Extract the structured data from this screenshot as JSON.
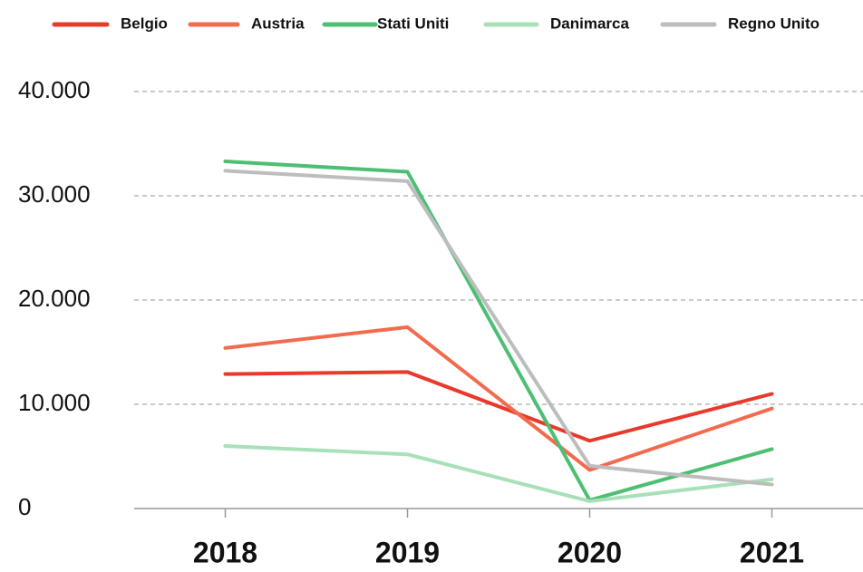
{
  "chart_data": {
    "type": "line",
    "categories": [
      "2018",
      "2019",
      "2020",
      "2021"
    ],
    "series": [
      {
        "name": "Belgio",
        "color": "#e8392b",
        "values": [
          12900,
          13100,
          6500,
          11000
        ]
      },
      {
        "name": "Austria",
        "color": "#f26b4f",
        "values": [
          15400,
          17400,
          3700,
          9600
        ]
      },
      {
        "name": "Stati Uniti",
        "color": "#4dbf73",
        "values": [
          33300,
          32300,
          800,
          5700
        ]
      },
      {
        "name": "Danimarca",
        "color": "#a8e0b8",
        "values": [
          6000,
          5200,
          700,
          2800
        ]
      },
      {
        "name": "Regno Unito",
        "color": "#bdbdbd",
        "values": [
          32400,
          31400,
          4100,
          2300
        ]
      }
    ],
    "ylim": [
      0,
      40000
    ],
    "yticks": [
      0,
      {
        "value": 10000,
        "label": "10.000"
      },
      {
        "value": 20000,
        "label": "20.000"
      },
      {
        "value": 30000,
        "label": "30.000"
      },
      {
        "value": 40000,
        "label": "40.000"
      }
    ],
    "grid": true,
    "legend": "top"
  }
}
